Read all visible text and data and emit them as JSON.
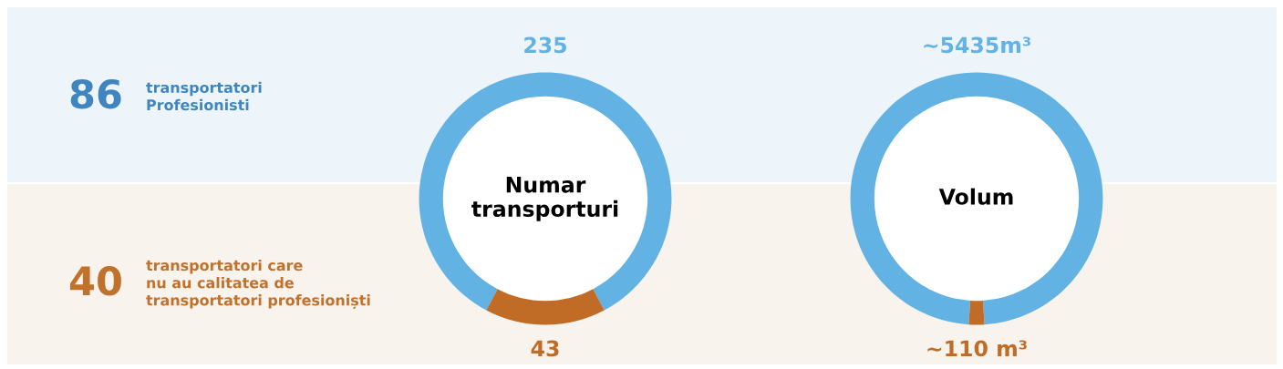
{
  "chart_data": [
    {
      "type": "other",
      "annotations": [
        "86",
        "transportatori\nProfesionisti",
        "40",
        "transportatori care\nnu au calitatea de\ntransportatori profesioniști"
      ],
      "colors": [
        "#3f86c0",
        "#3f86c0",
        "#c0712b",
        "#c0712b"
      ]
    },
    {
      "type": "donut",
      "title": "Numar\ntransporturi",
      "categories": [
        null,
        null
      ],
      "values": [
        235,
        43
      ],
      "colors": [
        "#62b3e4",
        "#c06c26"
      ],
      "data_labels": true
    },
    {
      "type": "donut",
      "title": "Volum",
      "categories": [
        null,
        null
      ],
      "values": [
        5435,
        110
      ],
      "colors": [
        "#62b3e4",
        "#c06c26"
      ],
      "value_labels": [
        "~5435m³",
        "~110 m³"
      ]
    }
  ]
}
